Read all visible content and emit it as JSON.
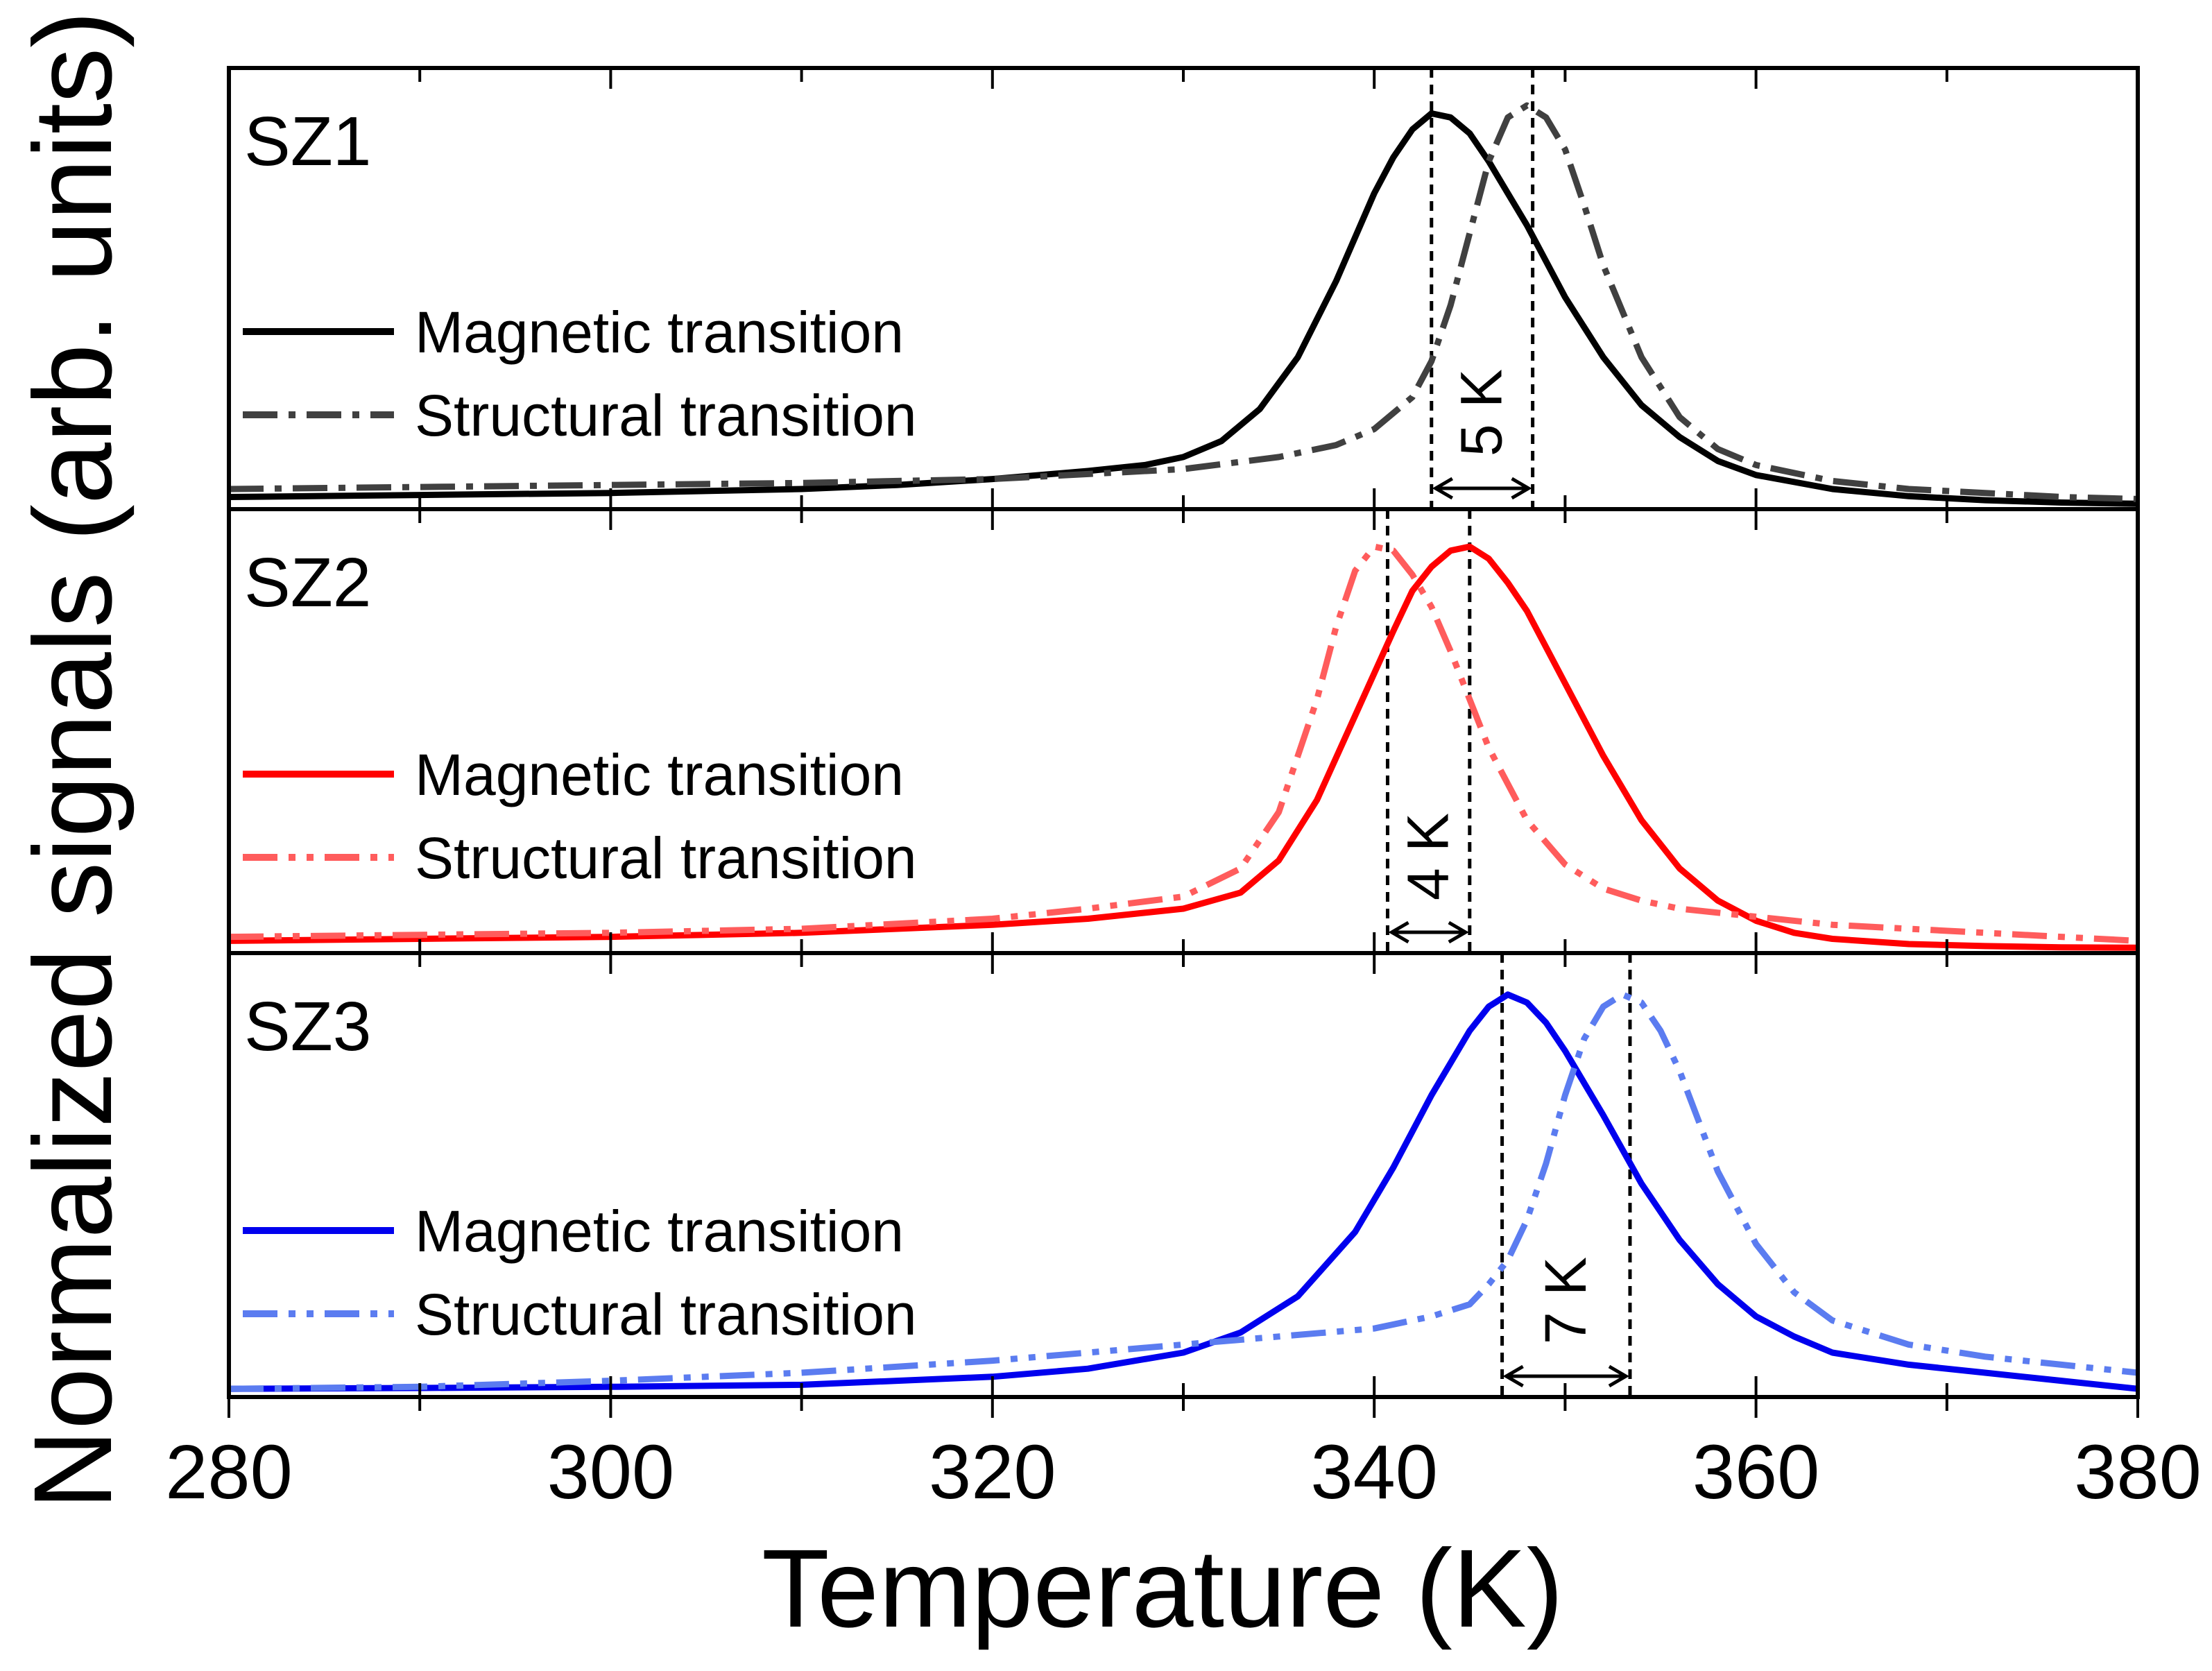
{
  "chart_data": {
    "type": "line",
    "x_axis": {
      "label": "Temperature (K)",
      "range": [
        280,
        380
      ],
      "ticks": [
        "280",
        "300",
        "320",
        "340",
        "360",
        "380"
      ],
      "tick_values": [
        280,
        300,
        320,
        340,
        360,
        380
      ],
      "minor_step": 10
    },
    "y_axis": {
      "label": "Normalized signals (arb. units)",
      "range": [
        0,
        1
      ]
    },
    "grid": false,
    "panels": [
      {
        "name": "SZ1",
        "legend_placement": "left",
        "series": [
          {
            "name": "Magnetic transition",
            "style": "solid",
            "color": "#000000",
            "x": [
              280,
              290,
              300,
              310,
              315,
              320,
              325,
              328,
              330,
              332,
              334,
              336,
              338,
              340,
              341,
              342,
              343,
              344,
              345,
              346,
              347,
              348,
              350,
              352,
              354,
              356,
              358,
              360,
              364,
              368,
              372,
              376,
              380
            ],
            "y": [
              0.02,
              0.025,
              0.03,
              0.04,
              0.05,
              0.065,
              0.085,
              0.1,
              0.12,
              0.16,
              0.24,
              0.37,
              0.56,
              0.78,
              0.87,
              0.94,
              0.98,
              0.97,
              0.93,
              0.86,
              0.78,
              0.7,
              0.52,
              0.37,
              0.25,
              0.17,
              0.11,
              0.075,
              0.04,
              0.022,
              0.012,
              0.006,
              0.003
            ]
          },
          {
            "name": "Structural transition",
            "style": "dash-dot",
            "color": "#404040",
            "x": [
              280,
              290,
              300,
              310,
              320,
              330,
              335,
              338,
              340,
              342,
              343,
              344,
              345,
              346,
              347,
              348,
              349,
              350,
              351,
              352,
              354,
              356,
              358,
              360,
              364,
              368,
              372,
              376,
              380
            ],
            "y": [
              0.04,
              0.045,
              0.05,
              0.055,
              0.065,
              0.09,
              0.12,
              0.15,
              0.19,
              0.27,
              0.36,
              0.5,
              0.68,
              0.86,
              0.97,
              1.0,
              0.97,
              0.89,
              0.75,
              0.6,
              0.37,
              0.22,
              0.14,
              0.1,
              0.06,
              0.04,
              0.03,
              0.02,
              0.015
            ]
          }
        ],
        "markers": [
          343.0,
          348.3
        ],
        "annotation": "5 K"
      },
      {
        "name": "SZ2",
        "legend_placement": "left",
        "series": [
          {
            "name": "Magnetic transition",
            "style": "solid",
            "color": "#ff0000",
            "x": [
              280,
              290,
              300,
              310,
              320,
              325,
              330,
              333,
              335,
              337,
              339,
              341,
              342,
              343,
              344,
              345,
              346,
              347,
              348,
              350,
              352,
              354,
              356,
              358,
              360,
              362,
              364,
              368,
              372,
              376,
              380
            ],
            "y": [
              0.02,
              0.025,
              0.03,
              0.04,
              0.06,
              0.075,
              0.1,
              0.14,
              0.22,
              0.37,
              0.58,
              0.79,
              0.89,
              0.95,
              0.99,
              1.0,
              0.97,
              0.91,
              0.84,
              0.66,
              0.48,
              0.32,
              0.2,
              0.12,
              0.07,
              0.04,
              0.025,
              0.012,
              0.007,
              0.004,
              0.003
            ]
          },
          {
            "name": "Structural transition",
            "style": "dash-dot-dot",
            "color": "#ff5c5c",
            "x": [
              280,
              290,
              300,
              310,
              320,
              325,
              330,
              333,
              335,
              337,
              338,
              339,
              340,
              341,
              342,
              343,
              344,
              345,
              346,
              348,
              350,
              352,
              354,
              356,
              358,
              360,
              364,
              368,
              372,
              376,
              380
            ],
            "y": [
              0.03,
              0.035,
              0.04,
              0.05,
              0.075,
              0.1,
              0.13,
              0.2,
              0.34,
              0.62,
              0.8,
              0.94,
              1.0,
              0.99,
              0.93,
              0.85,
              0.74,
              0.62,
              0.5,
              0.32,
              0.21,
              0.15,
              0.12,
              0.1,
              0.09,
              0.08,
              0.06,
              0.05,
              0.04,
              0.03,
              0.02
            ]
          }
        ],
        "markers": [
          340.7,
          345.0
        ],
        "annotation": "4 K"
      },
      {
        "name": "SZ3",
        "legend_placement": "left",
        "series": [
          {
            "name": "Magnetic transition",
            "style": "solid",
            "color": "#0000ee",
            "x": [
              280,
              290,
              300,
              310,
              320,
              325,
              330,
              333,
              336,
              339,
              341,
              343,
              345,
              346,
              347,
              348,
              349,
              350,
              352,
              354,
              356,
              358,
              360,
              362,
              364,
              368,
              372,
              376,
              380
            ],
            "y": [
              0.01,
              0.012,
              0.015,
              0.02,
              0.04,
              0.06,
              0.1,
              0.15,
              0.24,
              0.4,
              0.56,
              0.74,
              0.9,
              0.96,
              0.99,
              0.97,
              0.92,
              0.85,
              0.69,
              0.52,
              0.38,
              0.27,
              0.19,
              0.14,
              0.1,
              0.07,
              0.05,
              0.03,
              0.01
            ]
          },
          {
            "name": "Structural transition",
            "style": "dash-dot-dot",
            "color": "#5b7cf0",
            "x": [
              280,
              290,
              300,
              310,
              320,
              330,
              335,
              340,
              343,
              345,
              346,
              347,
              348,
              349,
              350,
              351,
              352,
              353,
              354,
              355,
              356,
              358,
              360,
              362,
              364,
              368,
              372,
              376,
              380
            ],
            "y": [
              0.01,
              0.015,
              0.03,
              0.05,
              0.08,
              0.12,
              0.14,
              0.16,
              0.19,
              0.22,
              0.27,
              0.33,
              0.43,
              0.57,
              0.74,
              0.88,
              0.96,
              0.99,
              0.97,
              0.9,
              0.8,
              0.55,
              0.37,
              0.25,
              0.18,
              0.12,
              0.09,
              0.07,
              0.05
            ]
          }
        ],
        "markers": [
          346.7,
          353.4
        ],
        "annotation": "7 K"
      }
    ]
  }
}
